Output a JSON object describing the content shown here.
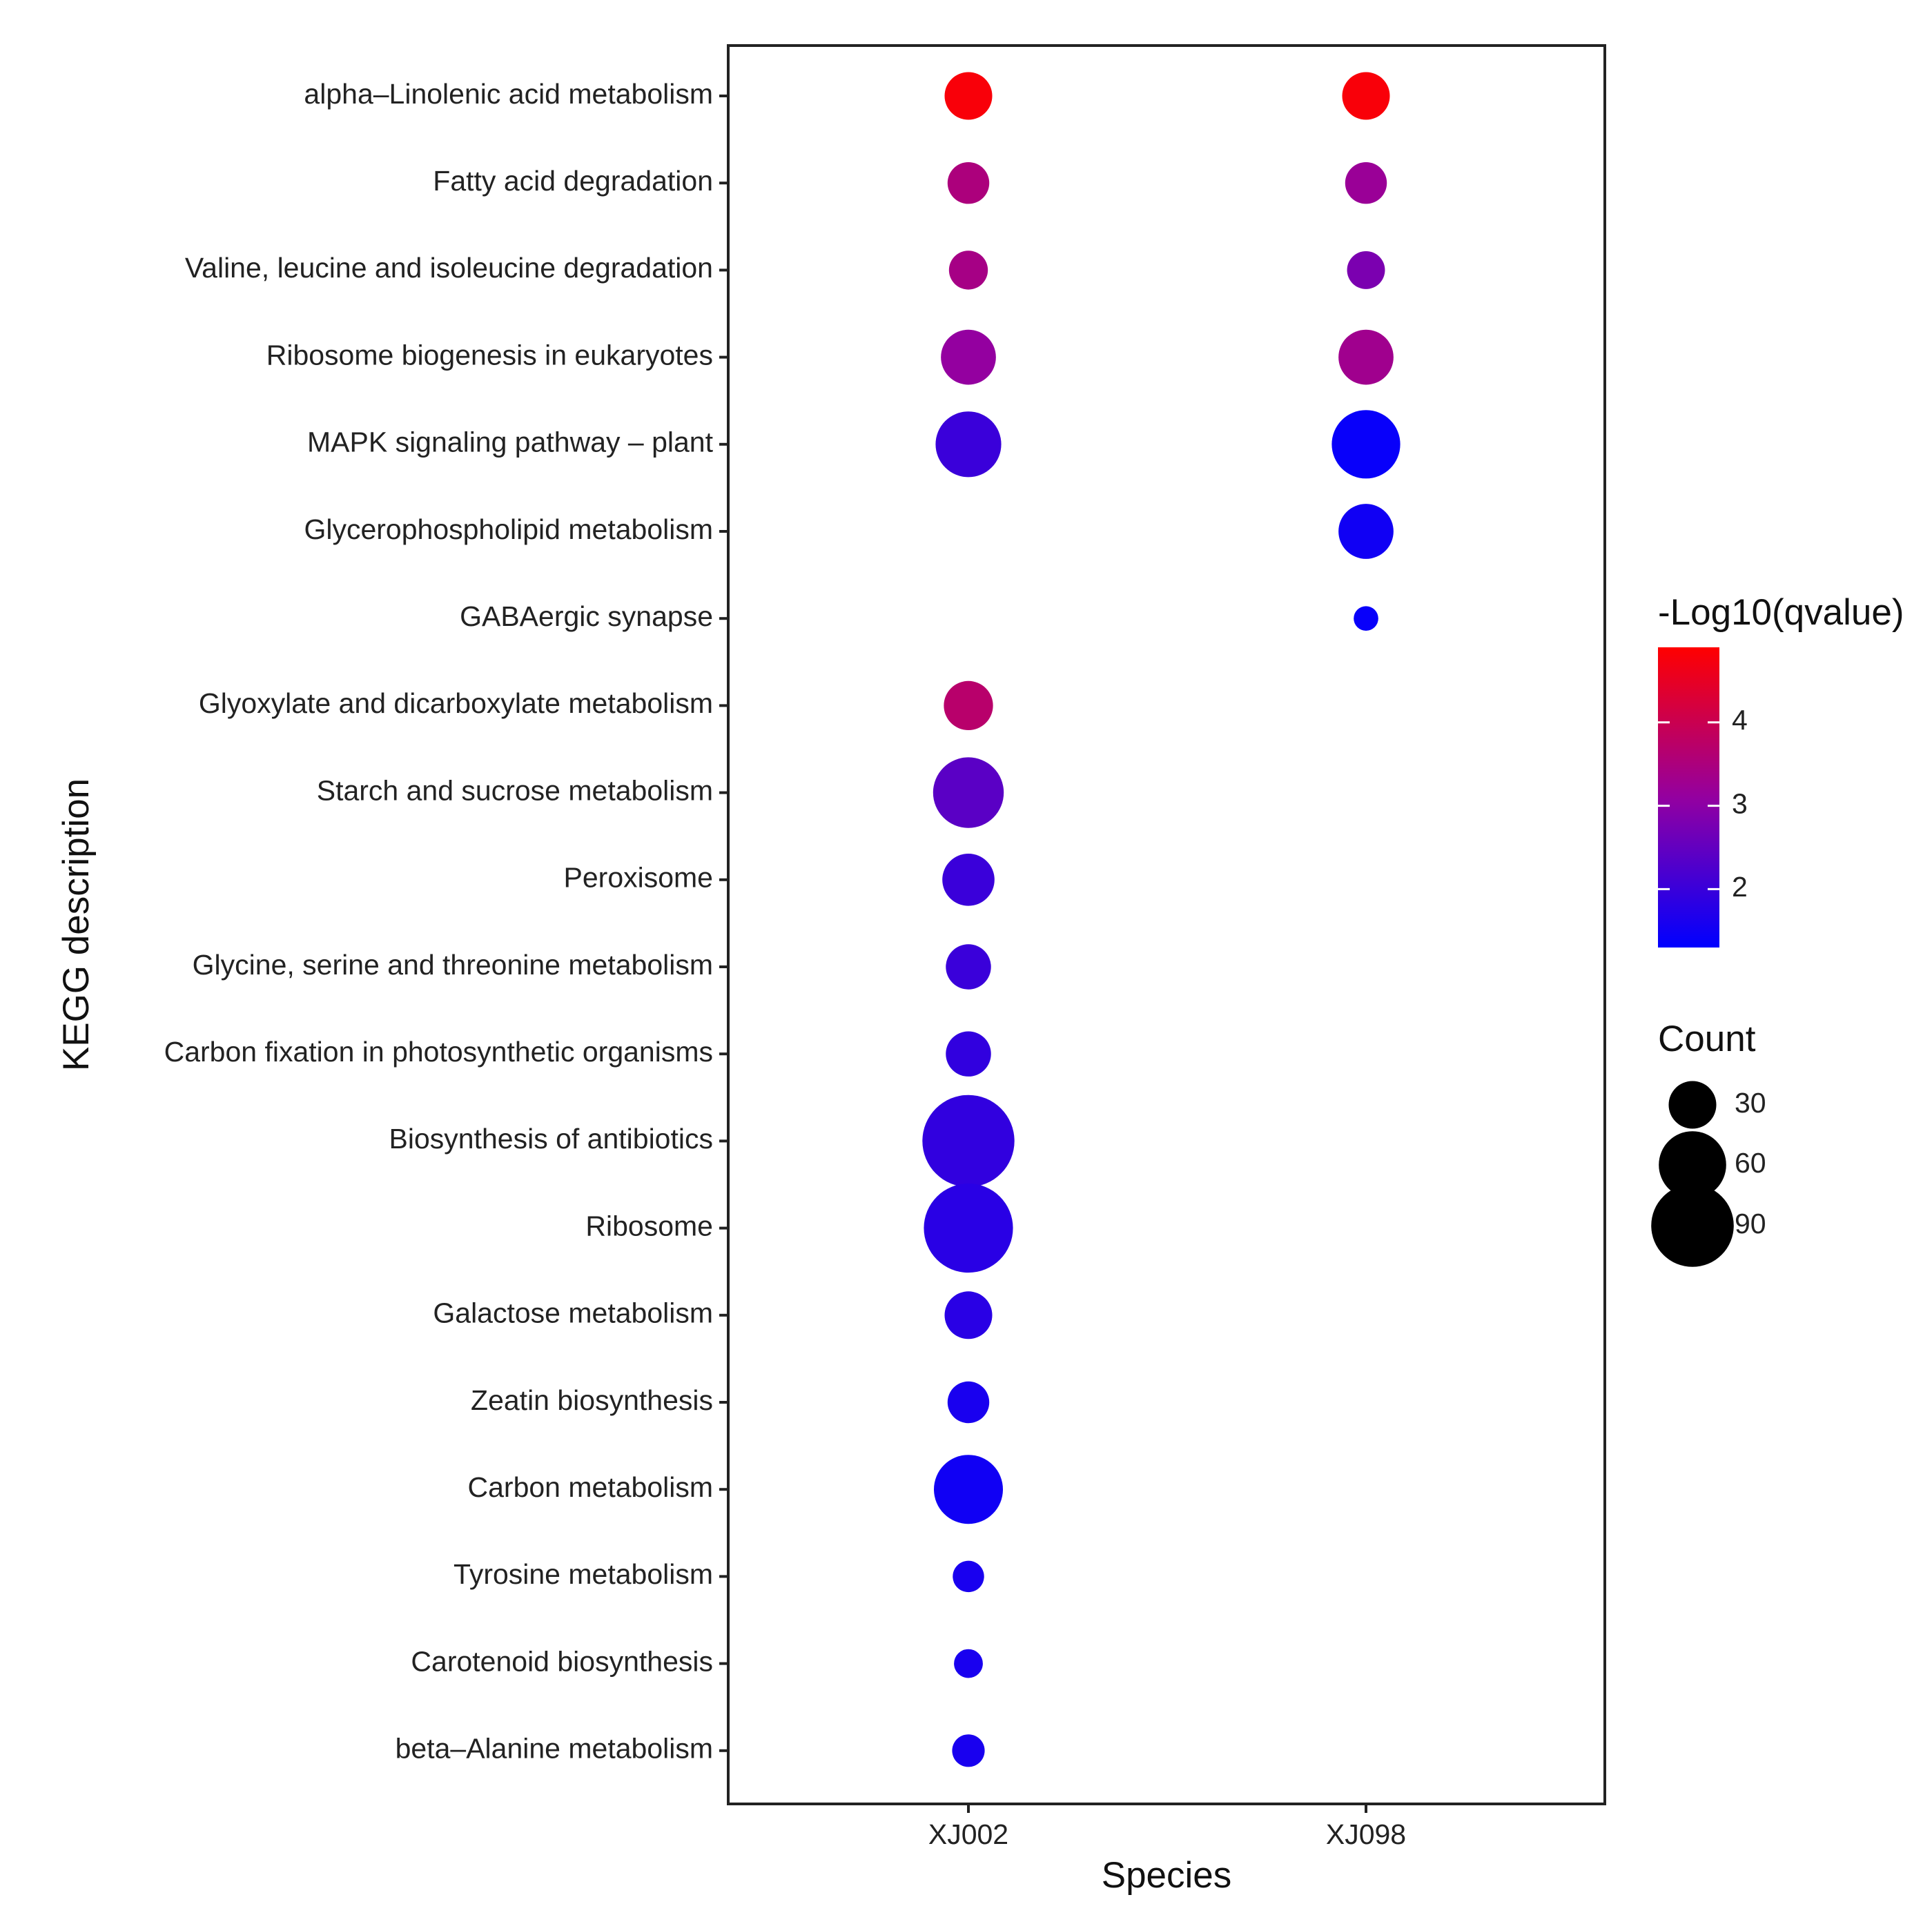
{
  "chart_data": {
    "type": "scatter",
    "subtype": "dot-plot",
    "xlabel": "Species",
    "ylabel": "KEGG description",
    "x_categories": [
      "XJ002",
      "XJ098"
    ],
    "y_categories": [
      "alpha–Linolenic acid metabolism",
      "Fatty acid degradation",
      "Valine, leucine and isoleucine degradation",
      "Ribosome biogenesis in eukaryotes",
      "MAPK signaling pathway – plant",
      "Glycerophospholipid metabolism",
      "GABAergic synapse",
      "Glyoxylate and dicarboxylate metabolism",
      "Starch and sucrose metabolism",
      "Peroxisome",
      "Glycine, serine and threonine metabolism",
      "Carbon fixation in photosynthetic organisms",
      "Biosynthesis of antibiotics",
      "Ribosome",
      "Galactose metabolism",
      "Zeatin biosynthesis",
      "Carbon metabolism",
      "Tyrosine metabolism",
      "Carotenoid biosynthesis",
      "beta–Alanine metabolism"
    ],
    "points": [
      {
        "species": "XJ002",
        "pathway": "alpha–Linolenic acid metabolism",
        "count": 30,
        "neg_log10_q": 4.8
      },
      {
        "species": "XJ098",
        "pathway": "alpha–Linolenic acid metabolism",
        "count": 30,
        "neg_log10_q": 4.8
      },
      {
        "species": "XJ002",
        "pathway": "Fatty acid degradation",
        "count": 23,
        "neg_log10_q": 3.5
      },
      {
        "species": "XJ098",
        "pathway": "Fatty acid degradation",
        "count": 23,
        "neg_log10_q": 3.2
      },
      {
        "species": "XJ002",
        "pathway": "Valine, leucine and isoleucine degradation",
        "count": 20,
        "neg_log10_q": 3.4
      },
      {
        "species": "XJ098",
        "pathway": "Valine, leucine and isoleucine degradation",
        "count": 19,
        "neg_log10_q": 2.8
      },
      {
        "species": "XJ002",
        "pathway": "Ribosome biogenesis in eukaryotes",
        "count": 40,
        "neg_log10_q": 3.1
      },
      {
        "species": "XJ098",
        "pathway": "Ribosome biogenesis in eukaryotes",
        "count": 40,
        "neg_log10_q": 3.3
      },
      {
        "species": "XJ002",
        "pathway": "MAPK signaling pathway – plant",
        "count": 57,
        "neg_log10_q": 2.0
      },
      {
        "species": "XJ098",
        "pathway": "MAPK signaling pathway – plant",
        "count": 62,
        "neg_log10_q": 1.4
      },
      {
        "species": "XJ098",
        "pathway": "Glycerophospholipid metabolism",
        "count": 40,
        "neg_log10_q": 1.5
      },
      {
        "species": "XJ098",
        "pathway": "GABAergic synapse",
        "count": 8,
        "neg_log10_q": 1.4
      },
      {
        "species": "XJ002",
        "pathway": "Glyoxylate and dicarboxylate metabolism",
        "count": 32,
        "neg_log10_q": 3.7
      },
      {
        "species": "XJ002",
        "pathway": "Starch and sucrose metabolism",
        "count": 66,
        "neg_log10_q": 2.4
      },
      {
        "species": "XJ002",
        "pathway": "Peroxisome",
        "count": 36,
        "neg_log10_q": 2.0
      },
      {
        "species": "XJ002",
        "pathway": "Glycine, serine and threonine metabolism",
        "count": 27,
        "neg_log10_q": 2.0
      },
      {
        "species": "XJ002",
        "pathway": "Carbon fixation in photosynthetic organisms",
        "count": 27,
        "neg_log10_q": 1.9
      },
      {
        "species": "XJ002",
        "pathway": "Biosynthesis of antibiotics",
        "count": 112,
        "neg_log10_q": 1.9
      },
      {
        "species": "XJ002",
        "pathway": "Ribosome",
        "count": 105,
        "neg_log10_q": 1.8
      },
      {
        "species": "XJ002",
        "pathway": "Galactose metabolism",
        "count": 30,
        "neg_log10_q": 1.8
      },
      {
        "species": "XJ002",
        "pathway": "Zeatin biosynthesis",
        "count": 23,
        "neg_log10_q": 1.6
      },
      {
        "species": "XJ002",
        "pathway": "Carbon metabolism",
        "count": 63,
        "neg_log10_q": 1.5
      },
      {
        "species": "XJ002",
        "pathway": "Tyrosine metabolism",
        "count": 13,
        "neg_log10_q": 1.6
      },
      {
        "species": "XJ002",
        "pathway": "Carotenoid biosynthesis",
        "count": 11,
        "neg_log10_q": 1.6
      },
      {
        "species": "XJ002",
        "pathway": "beta–Alanine metabolism",
        "count": 14,
        "neg_log10_q": 1.6
      }
    ],
    "color_legend": {
      "title": "-Log10(qvalue)",
      "ticks": [
        "4",
        "3",
        "2"
      ],
      "tick_values": [
        4,
        3,
        2
      ],
      "range": [
        1.3,
        4.9
      ],
      "low_color": "#0000ff",
      "mid_color": "#9400a0",
      "high_color": "#ff0000"
    },
    "size_legend": {
      "title": "Count",
      "ticks": [
        "30",
        "60",
        "90"
      ],
      "tick_values": [
        30,
        60,
        90
      ],
      "color": "#000000"
    },
    "grid": false,
    "legend_position": "right"
  }
}
